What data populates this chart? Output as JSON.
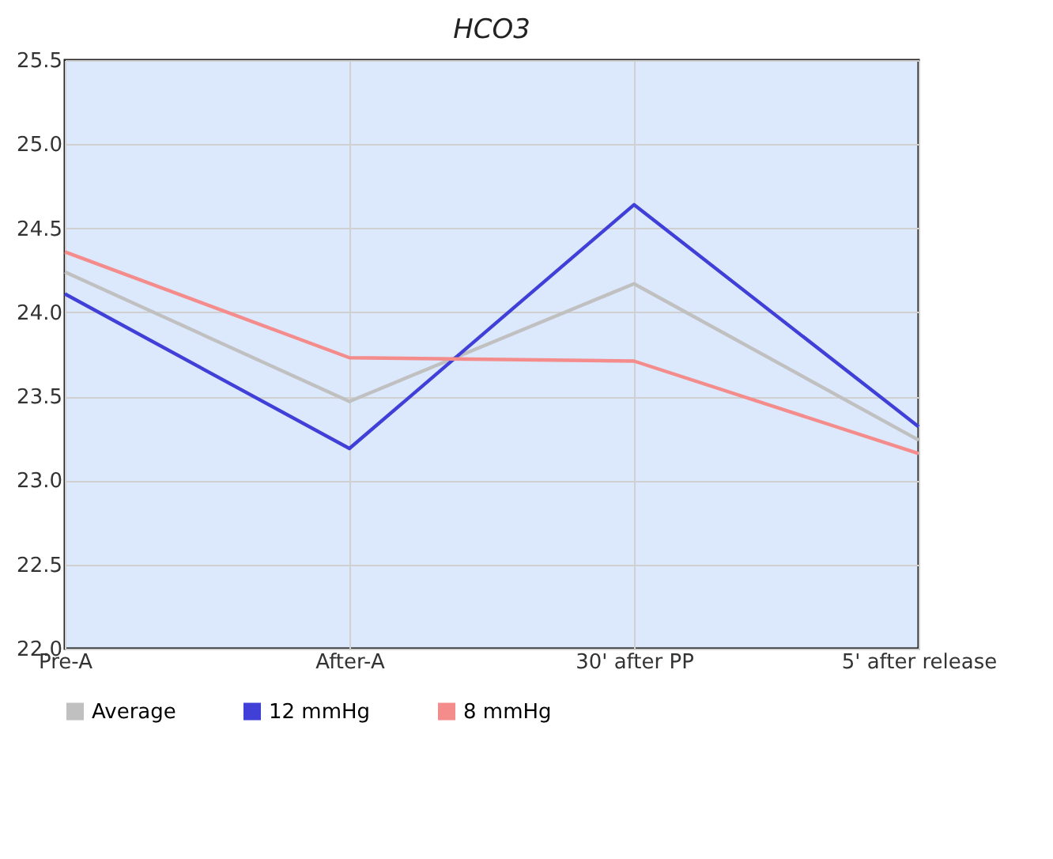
{
  "chart_data": {
    "type": "line",
    "title": "HCO3",
    "categories": [
      "Pre-A",
      "After-A",
      "30' after PP",
      "5' after release"
    ],
    "series": [
      {
        "name": "Average",
        "color": "#c0c0c0",
        "values": [
          24.24,
          23.47,
          24.17,
          23.24
        ]
      },
      {
        "name": "12 mmHg",
        "color": "#4040d8",
        "values": [
          24.11,
          23.19,
          24.64,
          23.32
        ]
      },
      {
        "name": "8 mmHg",
        "color": "#f48c8c",
        "values": [
          24.36,
          23.73,
          23.71,
          23.16
        ]
      }
    ],
    "ylim": [
      22.0,
      25.5
    ],
    "yticks": [
      {
        "value": 22,
        "label": "22.0"
      },
      {
        "value": 22.5,
        "label": "22.5"
      },
      {
        "value": 23,
        "label": "23.0"
      },
      {
        "value": 23.5,
        "label": "23.5"
      },
      {
        "value": 24,
        "label": "24.0"
      },
      {
        "value": 24.5,
        "label": "24.5"
      },
      {
        "value": 25,
        "label": "25.0"
      },
      {
        "value": 25.5,
        "label": "25.5"
      }
    ],
    "grid": true,
    "legend": "bottom",
    "marker": "none",
    "line_style": "solid"
  }
}
